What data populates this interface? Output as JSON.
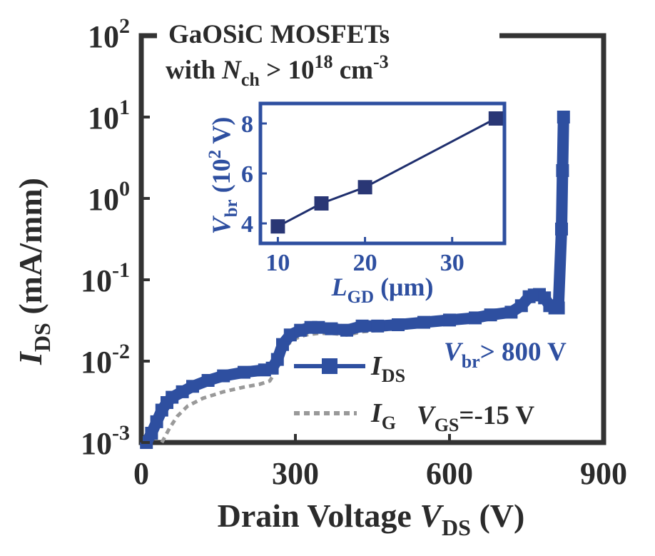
{
  "chart_data": [
    {
      "type": "line",
      "title_line1": "GaOSiC MOSFETs",
      "title_line2": {
        "a": "with ",
        "b": "N",
        "c": "ch",
        "d": " > 10",
        "e": "18",
        "f": " cm",
        "g": "-3"
      },
      "xlabel": {
        "main": "Drain Voltage ",
        "var": "V",
        "sub": "DS",
        "unit": " (V)"
      },
      "ylabel": {
        "var": "I",
        "sub": "DS",
        "unit": " (mA/mm)"
      },
      "xlim": [
        0,
        900
      ],
      "ylim": [
        0.001,
        100
      ],
      "yscale": "log",
      "x_ticks": [
        0,
        300,
        600,
        900
      ],
      "x_tick_labels": [
        "0",
        "300",
        "600",
        "900"
      ],
      "y_ticks": [
        0.001,
        0.01,
        0.1,
        1,
        10,
        100
      ],
      "y_tick_labels": [
        {
          "base": "10",
          "exp": "-3"
        },
        {
          "base": "10",
          "exp": "-2"
        },
        {
          "base": "10",
          "exp": "-1"
        },
        {
          "base": "10",
          "exp": "0"
        },
        {
          "base": "10",
          "exp": "1"
        },
        {
          "base": "10",
          "exp": "2"
        }
      ],
      "grid": false,
      "legend_position": "center",
      "series": [
        {
          "name": {
            "var": "I",
            "sub": "DS"
          },
          "style": "line-square",
          "color": "#2e4fa0",
          "x": [
            10,
            20,
            30,
            40,
            50,
            60,
            80,
            100,
            130,
            160,
            200,
            240,
            255,
            265,
            275,
            290,
            310,
            330,
            345,
            370,
            400,
            430,
            460,
            500,
            550,
            600,
            650,
            680,
            720,
            740,
            755,
            765,
            775,
            785,
            795,
            805,
            812,
            818,
            820,
            822
          ],
          "y": [
            0.001,
            0.0013,
            0.0018,
            0.0025,
            0.0031,
            0.0036,
            0.0042,
            0.0049,
            0.0058,
            0.0066,
            0.0073,
            0.0078,
            0.0082,
            0.0105,
            0.016,
            0.021,
            0.024,
            0.026,
            0.026,
            0.025,
            0.024,
            0.027,
            0.027,
            0.028,
            0.03,
            0.032,
            0.034,
            0.037,
            0.04,
            0.048,
            0.062,
            0.065,
            0.066,
            0.06,
            0.048,
            0.045,
            0.045,
            0.42,
            2.2,
            10
          ]
        },
        {
          "name": {
            "var": "I",
            "sub": "G"
          },
          "style": "dotted",
          "color": "#999999",
          "x": [
            40,
            55,
            70,
            90,
            120,
            160,
            200,
            230,
            250,
            262,
            272,
            285,
            300,
            320,
            345,
            370,
            400,
            430,
            460,
            500,
            550,
            600,
            650,
            680,
            720,
            740,
            755,
            765,
            775,
            785,
            795,
            805,
            812,
            818,
            820,
            822
          ],
          "y": [
            0.001,
            0.0015,
            0.0021,
            0.0028,
            0.0035,
            0.0042,
            0.0048,
            0.0052,
            0.0057,
            0.0075,
            0.0115,
            0.016,
            0.019,
            0.021,
            0.022,
            0.022,
            0.021,
            0.023,
            0.024,
            0.025,
            0.027,
            0.029,
            0.031,
            0.034,
            0.037,
            0.043,
            0.053,
            0.056,
            0.058,
            0.054,
            0.045,
            0.042,
            0.042,
            0.4,
            2.1,
            9.5
          ]
        }
      ],
      "annotations": {
        "vbr": {
          "var": "V",
          "sub": "br",
          "text": "> 800 V"
        },
        "vgs": {
          "var": "V",
          "sub": "GS",
          "text": "=-15 V"
        }
      }
    },
    {
      "type": "line",
      "inset": true,
      "xlabel": {
        "var": "L",
        "sub": "GD",
        "unit": " (μm)"
      },
      "ylabel": {
        "var": "V",
        "sub": "br",
        "unit": " (10",
        "exp": "2",
        "unit2": " V)"
      },
      "xlim": [
        8,
        36
      ],
      "ylim": [
        3.2,
        8.8
      ],
      "x_ticks": [
        10,
        20,
        30
      ],
      "x_tick_labels": [
        "10",
        "20",
        "30"
      ],
      "y_ticks": [
        4,
        6,
        8
      ],
      "y_tick_labels": [
        "4",
        "6",
        "8"
      ],
      "grid": false,
      "series": [
        {
          "style": "line-square",
          "color": "#1f2f6e",
          "x": [
            10,
            15,
            20,
            35
          ],
          "y": [
            3.88,
            4.8,
            5.45,
            8.2
          ]
        }
      ],
      "colors": {
        "frame": "#2e4fa0",
        "line": "#1f2f6e",
        "marker": "#2a3775"
      }
    }
  ]
}
